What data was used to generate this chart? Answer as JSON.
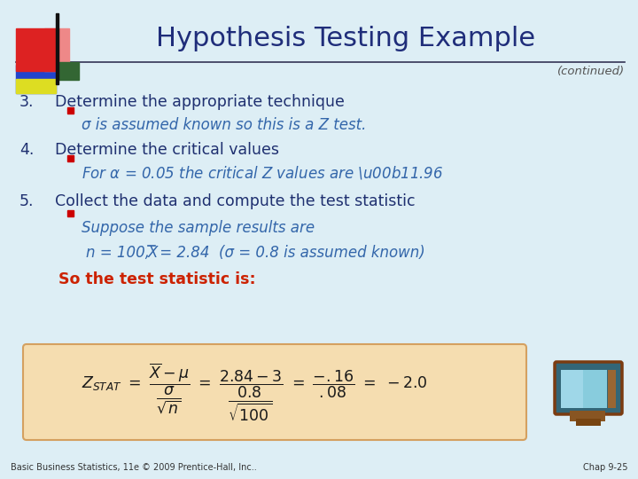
{
  "title": "Hypothesis Testing Example",
  "continued": "(continued)",
  "bg_color": "#ddeef5",
  "title_color": "#1f2d7a",
  "title_fontsize": 22,
  "dark_blue": "#1f3070",
  "bullet_red": "#cc0000",
  "teal_blue": "#3366aa",
  "orange_red": "#cc2200",
  "formula_bg": "#f5ddb0",
  "formula_border": "#d4a060",
  "footer_text": "Basic Business Statistics, 11e © 2009 Prentice-Hall, Inc..",
  "chap_text": "Chap 9-25",
  "line1_num": "3.",
  "line1_text": "Determine the appropriate technique",
  "bullet1": "σ is assumed known so this is a Z test.",
  "line2_num": "4.",
  "line2_text": "Determine the critical values",
  "line3_num": "5.",
  "line3_text": "Collect the data and compute the test statistic",
  "bullet3": "Suppose the sample results are",
  "so_line": "So the test statistic is:"
}
